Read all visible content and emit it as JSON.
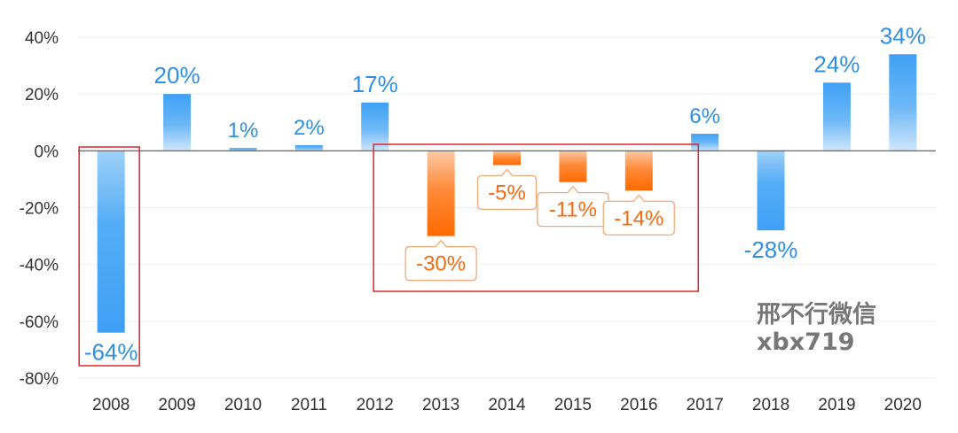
{
  "chart_data": {
    "type": "bar",
    "categories": [
      "2008",
      "2009",
      "2010",
      "2011",
      "2012",
      "2013",
      "2014",
      "2015",
      "2016",
      "2017",
      "2018",
      "2019",
      "2020"
    ],
    "values": [
      -64,
      20,
      1,
      2,
      17,
      -30,
      -5,
      -11,
      -14,
      6,
      -28,
      24,
      34
    ],
    "data_labels": [
      "-64%",
      "20%",
      "1%",
      "2%",
      "17%",
      "-30%",
      "-5%",
      "-11%",
      "-14%",
      "6%",
      "-28%",
      "24%",
      "34%"
    ],
    "yticks": [
      40,
      20,
      0,
      -20,
      -40,
      -60,
      -80
    ],
    "ytick_labels": [
      "40%",
      "20%",
      "0%",
      "-20%",
      "-40%",
      "-60%",
      "-80%"
    ],
    "ylim": [
      -80,
      40
    ],
    "grid": true,
    "legend": "none",
    "highlighted_categories": [
      "2013",
      "2014",
      "2015",
      "2016"
    ],
    "highlight_boxes": [
      [
        "2008",
        "2008"
      ],
      [
        "2013",
        "2016"
      ]
    ],
    "colors": {
      "bar": "#3fa0f5",
      "bar_light": "#b9dcf9",
      "highlight_bar": "#ff6a00",
      "highlight_bar_light": "#fbc9a4",
      "label_blue": "#2e8fe6",
      "label_orange": "#f26b12",
      "box": "#d9262b",
      "zero_line": "#555555",
      "grid": "#eeeeee",
      "tick_text": "#333333"
    }
  },
  "watermark": {
    "line1": "邢不行微信",
    "line2": "xbx719"
  }
}
